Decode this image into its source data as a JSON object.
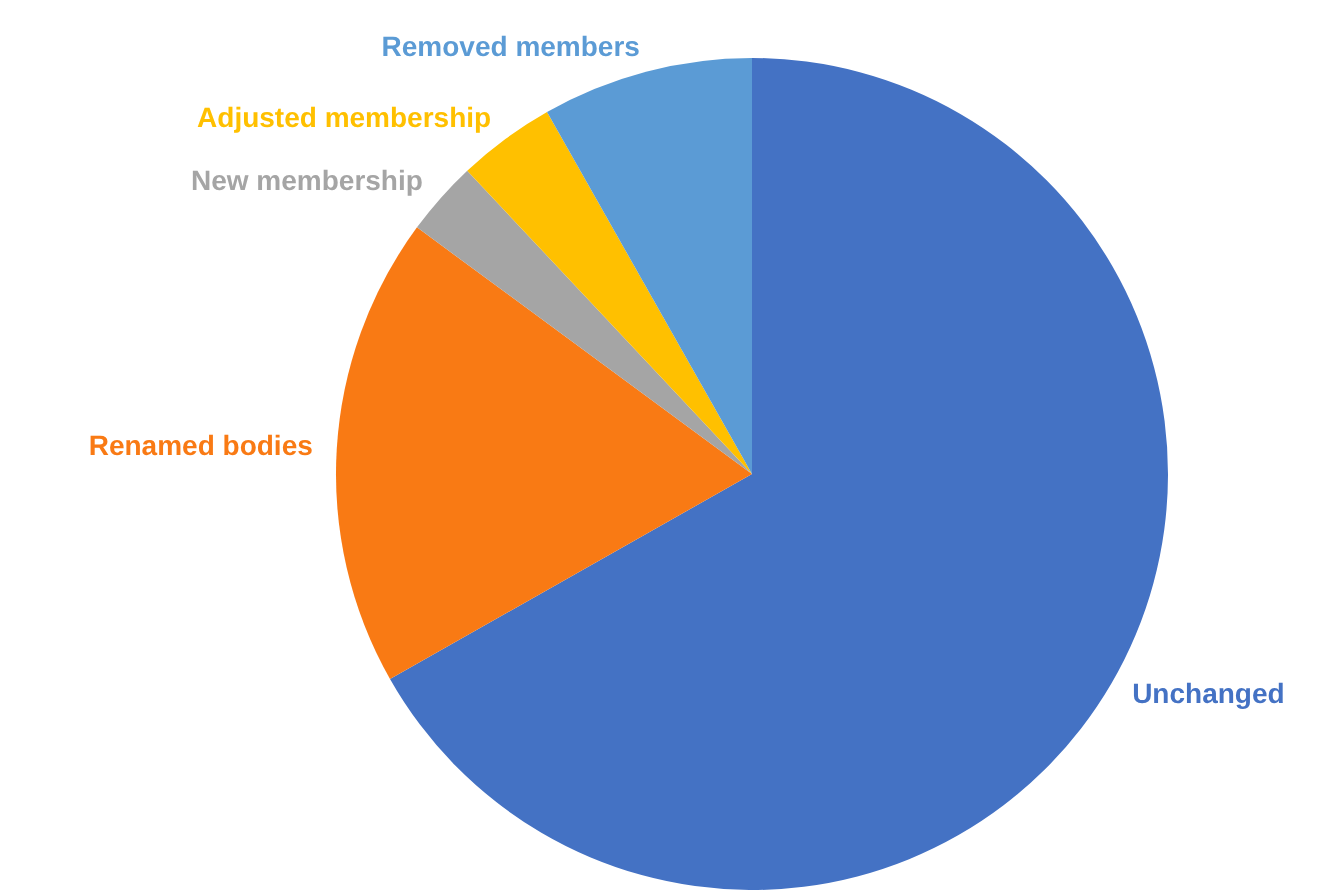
{
  "chart_data": {
    "type": "pie",
    "categories": [
      "Unchanged",
      "Renamed bodies",
      "New membership",
      "Adjusted membership",
      "Removed members"
    ],
    "values": [
      66.8,
      18.3,
      2.9,
      3.8,
      8.2
    ],
    "colors": [
      "#4472c4",
      "#f97a14",
      "#a5a5a5",
      "#ffc000",
      "#5b9bd5"
    ],
    "legend": false
  }
}
